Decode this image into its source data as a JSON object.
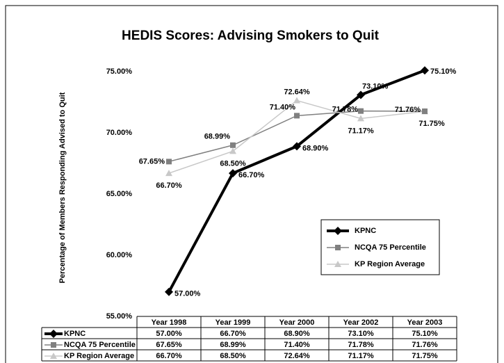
{
  "chart_data": {
    "type": "line",
    "title": "HEDIS Scores: Advising Smokers to Quit",
    "y_label": "Percentage of Members Responding Advised to Quit",
    "categories": [
      "Year 1998",
      "Year 1999",
      "Year 2000",
      "Year 2002",
      "Year 2003"
    ],
    "series": [
      {
        "name": "KPNC",
        "color": "#000000",
        "marker": "diamond",
        "values": [
          57.0,
          66.7,
          68.9,
          73.1,
          75.1
        ],
        "value_labels": [
          "57.00%",
          "66.70%",
          "68.90%",
          "73.10%",
          "75.10%"
        ]
      },
      {
        "name": "NCQA 75 Percentile",
        "color": "#808080",
        "marker": "square",
        "values": [
          67.65,
          68.99,
          71.4,
          71.78,
          71.76
        ],
        "value_labels": [
          "67.65%",
          "68.99%",
          "71.40%",
          "71.78%",
          "71.76%"
        ]
      },
      {
        "name": "KP Region Average",
        "color": "#c8c8c8",
        "marker": "triangle",
        "values": [
          66.7,
          68.5,
          72.64,
          71.17,
          71.75
        ],
        "value_labels": [
          "66.70%",
          "68.50%",
          "72.64%",
          "71.17%",
          "71.75%"
        ]
      }
    ],
    "ylim": [
      55,
      77
    ],
    "yticks": [
      {
        "value": 55,
        "label": "55.00%"
      },
      {
        "value": 60,
        "label": "60.00%"
      },
      {
        "value": 65,
        "label": "65.00%"
      },
      {
        "value": 70,
        "label": "70.00%"
      },
      {
        "value": 75,
        "label": "75.00%"
      }
    ],
    "legend": "inside-right"
  }
}
